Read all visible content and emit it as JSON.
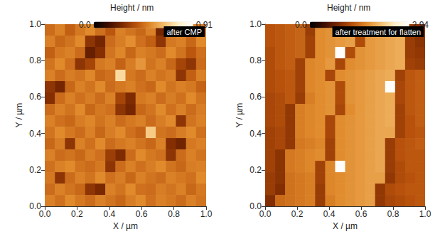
{
  "chart_data": [
    {
      "type": "heatmap",
      "title": "after CMP",
      "x_label": "X / µm",
      "y_label": "Y / µm",
      "xlim": [
        0,
        1
      ],
      "ylim": [
        0,
        1
      ],
      "xticks": [
        {
          "value": 0,
          "label": "0.0"
        },
        0.2,
        0.4,
        0.6,
        0.8,
        {
          "value": 1,
          "label": "1.0"
        }
      ],
      "yticks": [
        {
          "value": 0,
          "label": "0.0"
        },
        0.2,
        0.4,
        0.6,
        0.8,
        {
          "value": 1,
          "label": "1.0"
        }
      ],
      "colorbar": {
        "label": "Height / nm",
        "range": [
          0,
          0.91
        ],
        "ticks": [
          {
            "value": 0,
            "label": "0.0"
          },
          0.91
        ]
      },
      "cells": [
        [
          0.45,
          0.5,
          0.42,
          0.48,
          0.52,
          0.46,
          0.4,
          0.5,
          0.47,
          0.44,
          0.5,
          0.25,
          0.2,
          0.45,
          0.5,
          0.48
        ],
        [
          0.5,
          0.44,
          0.47,
          0.52,
          0.3,
          0.25,
          0.45,
          0.49,
          0.53,
          0.46,
          0.42,
          0.3,
          0.48,
          0.5,
          0.44,
          0.52
        ],
        [
          0.42,
          0.48,
          0.5,
          0.45,
          0.22,
          0.28,
          0.47,
          0.51,
          0.44,
          0.5,
          0.48,
          0.45,
          0.52,
          0.47,
          0.4,
          0.46
        ],
        [
          0.47,
          0.52,
          0.46,
          0.3,
          0.35,
          0.48,
          0.5,
          0.43,
          0.49,
          0.55,
          0.47,
          0.5,
          0.44,
          0.35,
          0.3,
          0.45
        ],
        [
          0.5,
          0.45,
          0.49,
          0.47,
          0.51,
          0.44,
          0.46,
          0.72,
          0.48,
          0.45,
          0.5,
          0.47,
          0.49,
          0.3,
          0.42,
          0.5
        ],
        [
          0.3,
          0.25,
          0.44,
          0.5,
          0.47,
          0.52,
          0.45,
          0.48,
          0.5,
          0.46,
          0.44,
          0.52,
          0.47,
          0.5,
          0.48,
          0.43
        ],
        [
          0.28,
          0.45,
          0.5,
          0.46,
          0.49,
          0.45,
          0.5,
          0.35,
          0.27,
          0.48,
          0.5,
          0.45,
          0.49,
          0.46,
          0.52,
          0.47
        ],
        [
          0.45,
          0.5,
          0.47,
          0.52,
          0.44,
          0.48,
          0.46,
          0.3,
          0.25,
          0.44,
          0.47,
          0.52,
          0.46,
          0.5,
          0.45,
          0.49
        ],
        [
          0.5,
          0.46,
          0.44,
          0.49,
          0.51,
          0.47,
          0.5,
          0.45,
          0.48,
          0.5,
          0.45,
          0.49,
          0.52,
          0.3,
          0.47,
          0.5
        ],
        [
          0.47,
          0.52,
          0.48,
          0.45,
          0.5,
          0.44,
          0.49,
          0.52,
          0.46,
          0.43,
          0.68,
          0.47,
          0.45,
          0.49,
          0.52,
          0.46
        ],
        [
          0.44,
          0.49,
          0.3,
          0.5,
          0.46,
          0.52,
          0.45,
          0.48,
          0.5,
          0.47,
          0.44,
          0.5,
          0.28,
          0.24,
          0.48,
          0.5
        ],
        [
          0.5,
          0.45,
          0.47,
          0.44,
          0.49,
          0.46,
          0.33,
          0.27,
          0.45,
          0.52,
          0.48,
          0.46,
          0.3,
          0.45,
          0.5,
          0.47
        ],
        [
          0.46,
          0.5,
          0.52,
          0.47,
          0.45,
          0.48,
          0.3,
          0.45,
          0.5,
          0.46,
          0.49,
          0.52,
          0.47,
          0.44,
          0.49,
          0.5
        ],
        [
          0.48,
          0.3,
          0.45,
          0.5,
          0.47,
          0.52,
          0.46,
          0.49,
          0.44,
          0.5,
          0.47,
          0.45,
          0.5,
          0.48,
          0.46,
          0.52
        ],
        [
          0.45,
          0.5,
          0.47,
          0.44,
          0.3,
          0.26,
          0.5,
          0.47,
          0.52,
          0.46,
          0.45,
          0.49,
          0.47,
          0.5,
          0.44,
          0.48
        ],
        [
          0.5,
          0.46,
          0.52,
          0.48,
          0.45,
          0.5,
          0.47,
          0.44,
          0.49,
          0.52,
          0.46,
          0.5,
          0.48,
          0.45,
          0.5,
          0.47
        ]
      ]
    },
    {
      "type": "heatmap",
      "title": "after treatment for flatten",
      "x_label": "X / µm",
      "y_label": "Y / µm",
      "xlim": [
        0,
        1
      ],
      "ylim": [
        0,
        1
      ],
      "xticks": [
        {
          "value": 0,
          "label": "0.0"
        },
        0.2,
        0.4,
        0.6,
        0.8,
        {
          "value": 1,
          "label": "1.0"
        }
      ],
      "yticks": [
        {
          "value": 0,
          "label": "0.0"
        },
        0.2,
        0.4,
        0.6,
        0.8,
        {
          "value": 1,
          "label": "1.0"
        }
      ],
      "colorbar": {
        "label": "Height / nm",
        "range": [
          0,
          2.94
        ],
        "ticks": [
          {
            "value": 0,
            "label": "0.0"
          },
          2.94
        ]
      },
      "cells": [
        [
          1.25,
          1.3,
          1.35,
          1.4,
          1.05,
          1.7,
          1.75,
          1.8,
          1.85,
          1.15,
          1.8,
          1.85,
          1.9,
          1.95,
          1.0,
          0.9
        ],
        [
          1.25,
          1.3,
          1.35,
          1.4,
          1.1,
          1.7,
          1.75,
          1.8,
          1.85,
          1.2,
          1.8,
          1.85,
          1.9,
          1.95,
          1.05,
          0.95
        ],
        [
          1.2,
          1.3,
          1.35,
          1.4,
          1.1,
          1.7,
          1.75,
          2.9,
          1.2,
          1.75,
          1.8,
          1.85,
          1.9,
          1.95,
          1.05,
          1.0
        ],
        [
          1.2,
          1.3,
          1.35,
          1.1,
          1.65,
          1.7,
          1.8,
          1.15,
          1.7,
          1.75,
          1.8,
          1.85,
          1.9,
          1.95,
          1.1,
          1.05
        ],
        [
          1.2,
          1.25,
          1.3,
          1.1,
          1.65,
          1.7,
          1.15,
          1.7,
          1.75,
          1.8,
          1.85,
          1.9,
          1.95,
          1.1,
          1.3,
          1.35
        ],
        [
          1.2,
          1.25,
          1.3,
          1.1,
          1.65,
          1.7,
          1.75,
          1.2,
          1.75,
          1.8,
          1.85,
          1.9,
          2.9,
          1.15,
          1.3,
          1.35
        ],
        [
          1.15,
          1.2,
          1.3,
          1.05,
          1.6,
          1.7,
          1.75,
          1.2,
          1.75,
          1.8,
          1.85,
          1.9,
          1.95,
          1.15,
          1.3,
          1.35
        ],
        [
          1.15,
          1.2,
          1.0,
          1.6,
          1.65,
          1.7,
          1.75,
          1.15,
          1.7,
          1.8,
          1.85,
          1.9,
          1.95,
          1.1,
          1.3,
          1.35
        ],
        [
          1.15,
          1.2,
          1.0,
          1.6,
          1.65,
          1.7,
          1.15,
          1.7,
          1.75,
          1.8,
          1.85,
          1.9,
          1.95,
          1.1,
          1.25,
          1.35
        ],
        [
          1.1,
          1.15,
          1.0,
          1.6,
          1.65,
          1.7,
          1.15,
          1.7,
          1.75,
          1.8,
          1.85,
          1.9,
          1.9,
          1.1,
          1.25,
          1.3
        ],
        [
          1.1,
          1.15,
          1.0,
          1.55,
          1.6,
          1.65,
          1.1,
          1.7,
          1.75,
          1.8,
          1.85,
          1.9,
          1.05,
          1.25,
          1.3,
          1.35
        ],
        [
          1.1,
          0.95,
          1.55,
          1.6,
          1.65,
          1.7,
          1.1,
          1.7,
          1.75,
          1.8,
          1.85,
          1.9,
          1.05,
          1.25,
          1.3,
          1.3
        ],
        [
          1.1,
          0.95,
          1.55,
          1.6,
          1.65,
          1.1,
          1.65,
          2.9,
          1.75,
          1.8,
          1.85,
          1.9,
          1.05,
          1.2,
          1.3,
          1.3
        ],
        [
          1.05,
          0.95,
          1.5,
          1.55,
          1.6,
          1.1,
          1.65,
          1.7,
          1.75,
          1.8,
          1.85,
          1.85,
          1.0,
          1.2,
          1.25,
          1.3
        ],
        [
          1.05,
          0.9,
          1.5,
          1.55,
          1.6,
          1.05,
          1.65,
          1.7,
          1.75,
          1.8,
          1.85,
          1.0,
          1.2,
          1.25,
          1.3,
          1.3
        ],
        [
          0.9,
          1.45,
          1.5,
          1.55,
          1.6,
          1.05,
          1.6,
          1.7,
          1.75,
          1.8,
          1.85,
          1.0,
          1.15,
          1.2,
          1.25,
          1.3
        ]
      ]
    }
  ]
}
